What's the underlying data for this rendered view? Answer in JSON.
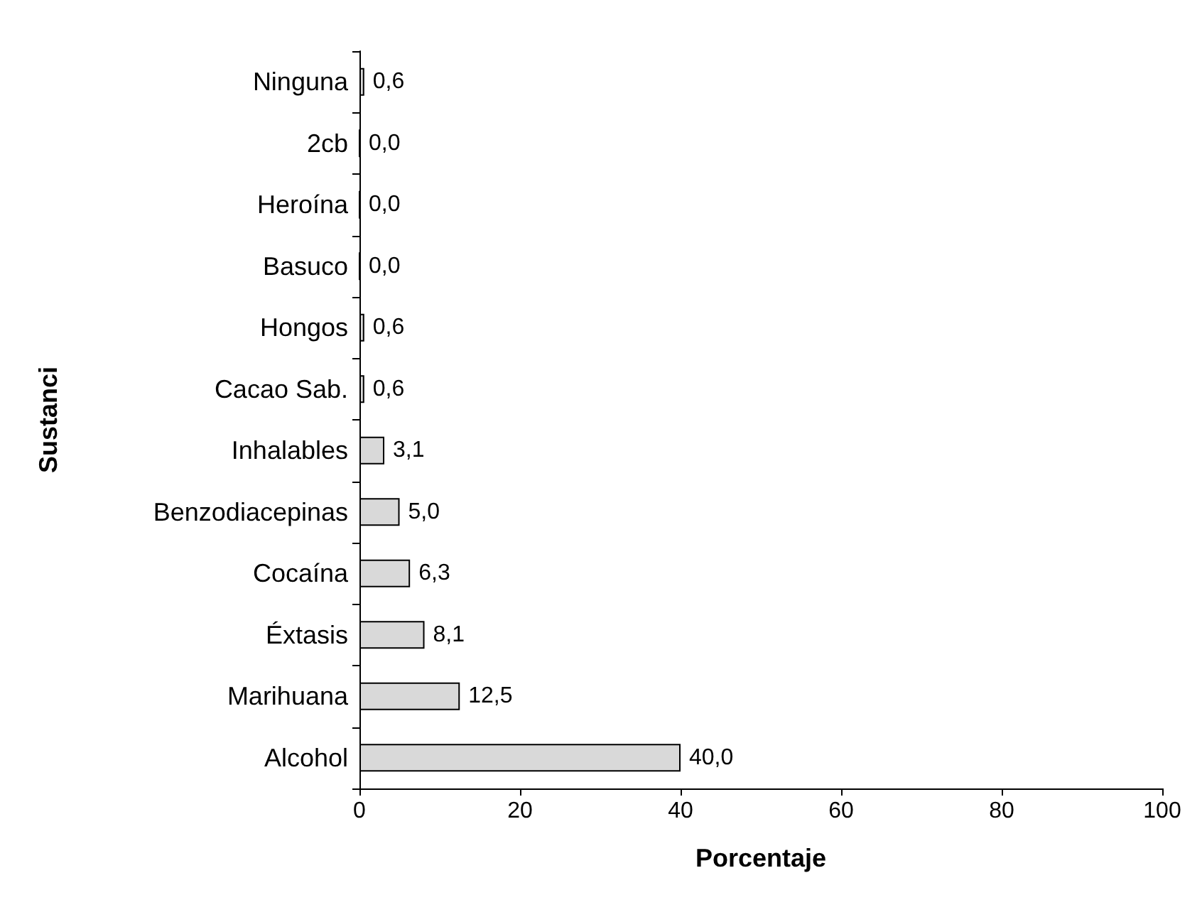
{
  "chart_data": {
    "type": "bar",
    "orientation": "horizontal",
    "xlabel": "Porcentaje",
    "ylabel": "Sustanci",
    "categories": [
      "Ninguna",
      "2cb",
      "Heroína",
      "Basuco",
      "Hongos",
      "Cacao Sab.",
      "Inhalables",
      "Benzodiacepinas",
      "Cocaína",
      "Éxtasis",
      "Marihuana",
      "Alcohol"
    ],
    "values": [
      0.6,
      0,
      0,
      0,
      0.6,
      0.6,
      3.1,
      5.0,
      6.3,
      8.1,
      12.5,
      40.0
    ],
    "value_labels": [
      "0,6",
      "0,0",
      "0,0",
      "0,0",
      "0,6",
      "0,6",
      "3,1",
      "5,0",
      "6,3",
      "8,1",
      "12,5",
      "40,0"
    ],
    "color": "#d9d9d9",
    "xlim": [
      0,
      100
    ],
    "xticks": [
      0,
      20,
      40,
      60,
      80,
      100
    ]
  }
}
